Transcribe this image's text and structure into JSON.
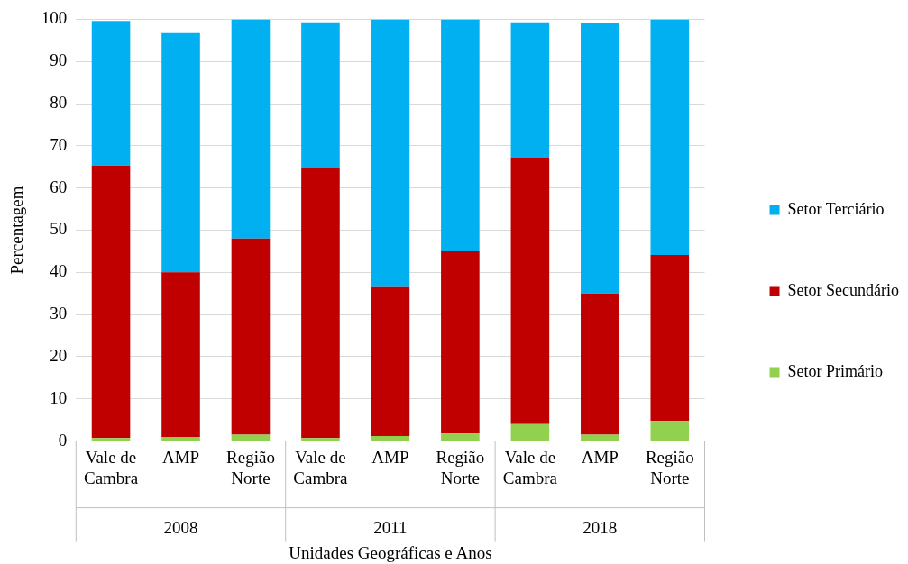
{
  "chart_data": {
    "type": "bar",
    "stacked": true,
    "xlabel": "Unidades Geográficas e Anos",
    "ylabel": "Percentagem",
    "categories": [
      "Vale de Cambra",
      "AMP",
      "Região Norte",
      "Vale de Cambra",
      "AMP",
      "Região Norte",
      "Vale de Cambra",
      "AMP",
      "Região Norte"
    ],
    "annotations": [
      "2008",
      "2011",
      "2018"
    ],
    "series": [
      {
        "name": "Setor Primário",
        "color": "#92d050",
        "values": [
          0.7,
          1.0,
          1.5,
          0.7,
          1.2,
          1.8,
          4.0,
          1.5,
          4.8
        ]
      },
      {
        "name": "Setor Secundário",
        "color": "#c00000",
        "values": [
          64.6,
          39.0,
          46.5,
          64.1,
          35.5,
          43.2,
          63.2,
          33.5,
          39.3
        ]
      },
      {
        "name": "Setor Terciário",
        "color": "#00b0f0",
        "values": [
          34.3,
          56.7,
          52.0,
          34.5,
          63.3,
          55.0,
          32.1,
          64.0,
          55.9
        ]
      }
    ],
    "ylim": [
      0,
      100
    ],
    "yticks": [
      0,
      10,
      20,
      30,
      40,
      50,
      60,
      70,
      80,
      90,
      100
    ],
    "grid": "y",
    "legend": "right"
  }
}
